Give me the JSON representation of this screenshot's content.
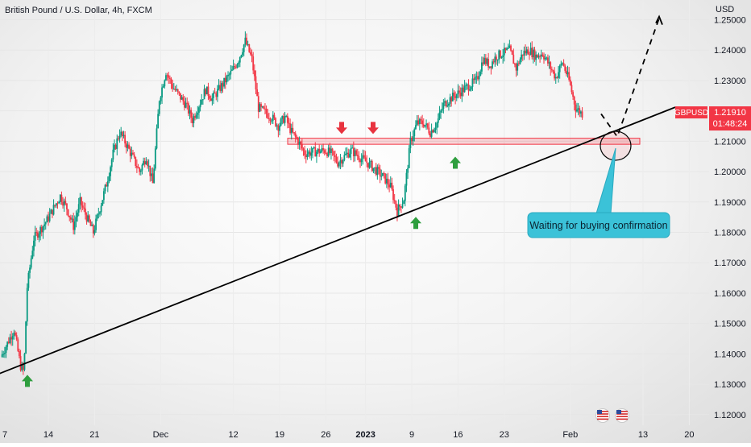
{
  "chart_data": {
    "type": "candlestick",
    "title": "British Pound / U.S. Dollar, 4h, FXCM",
    "currency_label": "USD",
    "y_range": [
      1.1165,
      1.2565
    ],
    "y_ticks": [
      "1.25000",
      "1.24000",
      "1.23000",
      "1.22000",
      "1.21000",
      "1.20000",
      "1.19000",
      "1.18000",
      "1.17000",
      "1.16000",
      "1.15000",
      "1.14000",
      "1.13000",
      "1.12000"
    ],
    "x_ticks": [
      "7",
      "14",
      "21",
      "Dec",
      "12",
      "19",
      "26",
      "2023",
      "9",
      "16",
      "23",
      "Feb",
      "13",
      "20"
    ],
    "symbol_tag": "GBPUSD",
    "last_price": "1.21910",
    "countdown": "01:48:24",
    "up_color": "#089981",
    "down_color": "#f23645",
    "price_path": [
      [
        "7",
        1.139
      ],
      [
        "9",
        1.148
      ],
      [
        "10",
        1.136
      ],
      [
        "10.5",
        1.134
      ],
      [
        "11",
        1.162
      ],
      [
        "12",
        1.178
      ],
      [
        "14",
        1.184
      ],
      [
        "16",
        1.192
      ],
      [
        "17",
        1.188
      ],
      [
        "18",
        1.182
      ],
      [
        "19",
        1.19
      ],
      [
        "21",
        1.18
      ],
      [
        "22",
        1.188
      ],
      [
        "23",
        1.196
      ],
      [
        "24",
        1.206
      ],
      [
        "25",
        1.213
      ],
      [
        "26",
        1.209
      ],
      [
        "28",
        1.2
      ],
      [
        "29",
        1.205
      ],
      [
        "30",
        1.196
      ],
      [
        "Dec 1",
        1.224
      ],
      [
        "Dec 2",
        1.233
      ],
      [
        "Dec 3",
        1.228
      ],
      [
        "Dec 5",
        1.222
      ],
      [
        "Dec 6",
        1.217
      ],
      [
        "Dec 8",
        1.227
      ],
      [
        "Dec 9",
        1.224
      ],
      [
        "Dec 10",
        1.227
      ],
      [
        "Dec 12",
        1.233
      ],
      [
        "Dec 13",
        1.237
      ],
      [
        "Dec 14",
        1.243
      ],
      [
        "Dec 15",
        1.237
      ],
      [
        "Dec 16",
        1.221
      ],
      [
        "Dec 18",
        1.218
      ],
      [
        "Dec 19",
        1.215
      ],
      [
        "Dec 20",
        1.218
      ],
      [
        "Dec 21",
        1.213
      ],
      [
        "Dec 22",
        1.21
      ],
      [
        "Dec 23",
        1.206
      ],
      [
        "Dec 26",
        1.207
      ],
      [
        "Dec 27",
        1.206
      ],
      [
        "Dec 28",
        1.203
      ],
      [
        "Dec 29",
        1.205
      ],
      [
        "Dec 30",
        1.207
      ],
      [
        "Jan 2",
        1.202
      ],
      [
        "Jan 4",
        1.198
      ],
      [
        "Jan 5",
        1.195
      ],
      [
        "Jan 6",
        1.187
      ],
      [
        "Jan 7",
        1.191
      ],
      [
        "Jan 8",
        1.21
      ],
      [
        "Jan 9",
        1.216
      ],
      [
        "Jan 10",
        1.216
      ],
      [
        "Jan 11",
        1.213
      ],
      [
        "Jan 12",
        1.216
      ],
      [
        "Jan 13",
        1.222
      ],
      [
        "Jan 14",
        1.224
      ],
      [
        "Jan 16",
        1.227
      ],
      [
        "Jan 18",
        1.23
      ],
      [
        "Jan 19",
        1.237
      ],
      [
        "Jan 20",
        1.235
      ],
      [
        "Jan 21",
        1.238
      ],
      [
        "Jan 23",
        1.24
      ],
      [
        "Jan 24",
        1.234
      ],
      [
        "Jan 25",
        1.239
      ],
      [
        "Jan 26",
        1.24
      ],
      [
        "Jan 27",
        1.238
      ],
      [
        "Jan 28",
        1.239
      ],
      [
        "Jan 30",
        1.231
      ],
      [
        "Jan 31",
        1.236
      ],
      [
        "Feb 1",
        1.23
      ],
      [
        "Feb 2",
        1.221
      ],
      [
        "Feb 3",
        1.2191
      ]
    ],
    "resistance_zone": [
      1.2095,
      1.2105
    ],
    "trendline": [
      [
        "10",
        1.1335
      ],
      [
        "Feb 20",
        1.2212
      ]
    ],
    "projection": [
      [
        "Feb 3",
        1.219
      ],
      [
        "Feb 6",
        1.2115
      ],
      [
        "Feb 13",
        1.2505
      ]
    ],
    "annotation": "Waiting for buying confirmation",
    "markers": [
      {
        "kind": "up-arrow",
        "at": "10.5",
        "value": 1.131
      },
      {
        "kind": "down-arrow",
        "at": "Dec 27",
        "value": 1.2145
      },
      {
        "kind": "down-arrow",
        "at": "Dec 30",
        "value": 1.2145
      },
      {
        "kind": "up-arrow",
        "at": "Jan 7",
        "value": 1.183
      },
      {
        "kind": "up-arrow",
        "at": "Jan 13",
        "value": 1.2028
      }
    ]
  },
  "icons": [
    "flag-us-icon",
    "flag-us-icon"
  ]
}
